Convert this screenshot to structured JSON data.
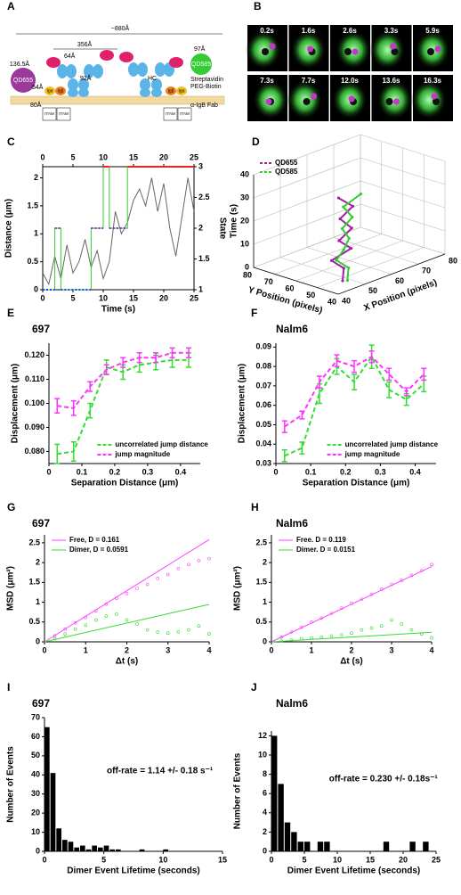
{
  "diagram": {
    "panel": "A",
    "labels": [
      "~880Å",
      "356Å",
      "64Å",
      "136.5Å",
      "QD655",
      "54Å",
      "80Å",
      "92Å",
      "HC",
      "97Å",
      "QD585",
      "Streptavidin",
      "PEG-Biotin",
      "α-IgB Fab",
      "ITAM",
      "Igα",
      "Igβ"
    ]
  },
  "image_grid": {
    "panel": "B",
    "frames": [
      "0.2s",
      "1.6s",
      "2.6s",
      "3.3s",
      "5.9s",
      "7.3s",
      "7.7s",
      "12.0s",
      "13.6s",
      "16.3s"
    ]
  },
  "chart_data": [
    {
      "panel": "C",
      "type": "line",
      "xlabel": "Time (s)",
      "ylabel": "Distance (μm)",
      "y2label": "State",
      "xlim": [
        0,
        25
      ],
      "xticks": [
        0,
        5,
        10,
        15,
        20,
        25
      ],
      "ylim": [
        0,
        2.2
      ],
      "yticks": [
        0,
        0.5,
        1,
        1.5,
        2
      ],
      "y2lim": [
        1,
        3
      ],
      "y2ticks": [
        1,
        1.5,
        2,
        2.5,
        3
      ],
      "series": [
        {
          "color": "#666666",
          "x": [
            0,
            1,
            2,
            3,
            4,
            5,
            6,
            7,
            8,
            9,
            10,
            11,
            12,
            13,
            14,
            15,
            16,
            17,
            18,
            19,
            20,
            21,
            22,
            23,
            24,
            25
          ],
          "values": [
            0.3,
            0.1,
            0.6,
            0.2,
            0.8,
            0.3,
            0.5,
            0.9,
            0.4,
            0.7,
            0.2,
            0.5,
            1.4,
            1.0,
            1.2,
            1.6,
            1.8,
            1.5,
            2.0,
            1.4,
            1.9,
            1.1,
            0.6,
            1.3,
            2.0,
            1.4
          ]
        },
        {
          "color": "#33cc33",
          "axis": "y2",
          "x": [
            0,
            2,
            2,
            3,
            3,
            8,
            8,
            10,
            10,
            11,
            11,
            14,
            14,
            25
          ],
          "values": [
            1,
            1,
            2,
            2,
            1,
            1,
            2,
            2,
            3,
            3,
            2,
            2,
            3,
            3
          ]
        },
        {
          "color": "#aa22cc",
          "axis": "y2",
          "dash": true,
          "x": [
            2,
            3,
            6,
            8,
            10,
            11,
            11,
            14
          ],
          "values": [
            2,
            2,
            null,
            2,
            2,
            null,
            2,
            2
          ]
        },
        {
          "color": "#2244ee",
          "axis": "y2",
          "dash": true,
          "x": [
            0,
            2,
            3,
            3,
            8
          ],
          "values": [
            1,
            1,
            null,
            1,
            1
          ]
        },
        {
          "color": "#ee2222",
          "axis": "y2",
          "x": [
            10,
            11,
            12,
            14,
            25
          ],
          "values": [
            3,
            3,
            null,
            3,
            3
          ]
        }
      ]
    },
    {
      "panel": "D",
      "type": "scatter3d",
      "xlabel": "X Position (pixels)",
      "ylabel": "Y Position (pixels)",
      "zlabel": "Time (s)",
      "xlim": [
        40,
        80
      ],
      "xticks": [
        40,
        50,
        60,
        70,
        80
      ],
      "ylim": [
        40,
        80
      ],
      "yticks": [
        40,
        50,
        60,
        70,
        80
      ],
      "zlim": [
        0,
        40
      ],
      "zticks": [
        0,
        10,
        20,
        30,
        40
      ],
      "legend": "upper left",
      "series": [
        {
          "name": "QD655",
          "color": "#a020a0",
          "x": [
            48,
            50,
            47,
            52,
            49,
            53,
            51,
            55,
            52
          ],
          "y": [
            48,
            50,
            52,
            49,
            51,
            50,
            53,
            52,
            55
          ],
          "values": [
            0,
            4,
            8,
            12,
            16,
            20,
            24,
            28,
            32
          ]
        },
        {
          "name": "QD585",
          "color": "#33cc33",
          "x": [
            49,
            51,
            48,
            50,
            52,
            51,
            54,
            53,
            58
          ],
          "y": [
            47,
            49,
            51,
            50,
            50,
            52,
            51,
            54,
            52
          ],
          "values": [
            0,
            4,
            8,
            12,
            16,
            20,
            24,
            28,
            32
          ]
        }
      ]
    },
    {
      "panel": "E",
      "title": "697",
      "type": "line",
      "xlabel": "Separation Distance (μm)",
      "ylabel": "Displacement (μm)",
      "xlim": [
        0,
        0.46
      ],
      "xticks": [
        0,
        0.1,
        0.2,
        0.3,
        0.4
      ],
      "ylim": [
        0.075,
        0.125
      ],
      "yticks": [
        {
          "value": 0.08,
          "label": "0.080"
        },
        {
          "value": 0.09,
          "label": "0.090"
        },
        {
          "value": 0.1,
          "label": "0.100"
        },
        {
          "value": 0.11,
          "label": "0.110"
        },
        {
          "value": 0.12,
          "label": "0.120"
        }
      ],
      "legend": "lower right",
      "x": [
        0.025,
        0.075,
        0.125,
        0.175,
        0.225,
        0.275,
        0.325,
        0.375,
        0.425
      ],
      "series": [
        {
          "name": "uncorrelated jump distance",
          "color": "#33dd33",
          "dash": true,
          "values": [
            0.079,
            0.08,
            0.097,
            0.115,
            0.113,
            0.116,
            0.117,
            0.118,
            0.118
          ],
          "errors": [
            0.004,
            0.004,
            0.003,
            0.003,
            0.003,
            0.003,
            0.003,
            0.003,
            0.003
          ]
        },
        {
          "name": "jump magnitude",
          "color": "#ff33ff",
          "dash": true,
          "values": [
            0.099,
            0.098,
            0.107,
            0.114,
            0.117,
            0.119,
            0.119,
            0.121,
            0.121
          ],
          "errors": [
            0.003,
            0.003,
            0.002,
            0.002,
            0.002,
            0.002,
            0.002,
            0.002,
            0.002
          ]
        }
      ]
    },
    {
      "panel": "F",
      "title": "Nalm6",
      "type": "line",
      "xlabel": "Separation Distance (μm)",
      "ylabel": "Displacement (μm)",
      "xlim": [
        0,
        0.46
      ],
      "xticks": [
        0,
        0.1,
        0.2,
        0.3,
        0.4
      ],
      "ylim": [
        0.03,
        0.092
      ],
      "yticks": [
        0.03,
        0.04,
        0.05,
        0.06,
        0.07,
        0.08,
        0.09
      ],
      "legend": "lower right",
      "x": [
        0.025,
        0.075,
        0.125,
        0.175,
        0.225,
        0.275,
        0.325,
        0.375,
        0.425
      ],
      "series": [
        {
          "name": "uncorrelated jump distance",
          "color": "#33dd33",
          "dash": true,
          "values": [
            0.034,
            0.038,
            0.066,
            0.08,
            0.072,
            0.085,
            0.068,
            0.063,
            0.071
          ],
          "errors": [
            0.003,
            0.003,
            0.005,
            0.004,
            0.004,
            0.006,
            0.004,
            0.003,
            0.004
          ]
        },
        {
          "name": "jump magnitude",
          "color": "#ff33ff",
          "dash": true,
          "values": [
            0.049,
            0.055,
            0.072,
            0.083,
            0.08,
            0.085,
            0.076,
            0.067,
            0.076
          ],
          "errors": [
            0.003,
            0.002,
            0.003,
            0.003,
            0.003,
            0.003,
            0.003,
            0.002,
            0.003
          ]
        }
      ]
    },
    {
      "panel": "G",
      "title": "697",
      "type": "scatter",
      "xlabel": "Δt (s)",
      "ylabel": "MSD (μm²)",
      "xlim": [
        0,
        4
      ],
      "xticks": [
        0,
        1,
        2,
        3,
        4
      ],
      "ylim": [
        0,
        2.7
      ],
      "yticks": [
        0,
        0.5,
        1,
        1.5,
        2,
        2.5
      ],
      "legend": "upper left",
      "series": [
        {
          "name": "Free, D = 0.161",
          "color": "#ff44ff",
          "style": "line",
          "x": [
            0,
            4
          ],
          "values": [
            0,
            2.58
          ]
        },
        {
          "name": "Dimer, D = 0.0591",
          "color": "#33dd33",
          "style": "line",
          "x": [
            0,
            4
          ],
          "values": [
            0,
            0.946
          ]
        },
        {
          "color": "#ff44ff",
          "x": [
            0.25,
            0.5,
            0.75,
            1,
            1.25,
            1.5,
            1.75,
            2,
            2.25,
            2.5,
            2.75,
            3,
            3.25,
            3.5,
            3.75,
            4
          ],
          "values": [
            0.15,
            0.32,
            0.48,
            0.62,
            0.78,
            0.95,
            1.1,
            1.22,
            1.35,
            1.45,
            1.6,
            1.7,
            1.85,
            1.95,
            2.05,
            2.1
          ]
        },
        {
          "color": "#33dd33",
          "x": [
            0.25,
            0.5,
            0.75,
            1,
            1.25,
            1.5,
            1.75,
            2,
            2.25,
            2.5,
            2.75,
            3,
            3.25,
            3.5,
            3.75,
            4
          ],
          "values": [
            0.08,
            0.2,
            0.32,
            0.42,
            0.55,
            0.65,
            0.7,
            0.55,
            0.45,
            0.3,
            0.25,
            0.22,
            0.25,
            0.3,
            0.4,
            0.2
          ]
        }
      ]
    },
    {
      "panel": "H",
      "title": "Nalm6",
      "type": "scatter",
      "xlabel": "Δt (s)",
      "ylabel": "MSD (μm²)",
      "xlim": [
        0,
        4
      ],
      "xticks": [
        0,
        1,
        2,
        3,
        4
      ],
      "ylim": [
        0,
        2.7
      ],
      "yticks": [
        0,
        0.5,
        1,
        1.5,
        2,
        2.5
      ],
      "legend": "upper left",
      "series": [
        {
          "name": "Free. D = 0.119",
          "color": "#ff44ff",
          "style": "line",
          "x": [
            0,
            4
          ],
          "values": [
            0,
            1.9
          ]
        },
        {
          "name": "Dimer. D = 0.0151",
          "color": "#33dd33",
          "style": "line",
          "x": [
            0,
            4
          ],
          "values": [
            0,
            0.24
          ]
        },
        {
          "color": "#ff44ff",
          "x": [
            0.25,
            0.5,
            0.75,
            1,
            1.25,
            1.5,
            1.75,
            2,
            2.25,
            2.5,
            2.75,
            3,
            3.25,
            3.5,
            3.75,
            4
          ],
          "values": [
            0.12,
            0.25,
            0.37,
            0.5,
            0.6,
            0.72,
            0.85,
            0.97,
            1.08,
            1.2,
            1.33,
            1.45,
            1.55,
            1.68,
            1.8,
            1.95
          ]
        },
        {
          "color": "#33dd33",
          "x": [
            0.25,
            0.5,
            0.75,
            1,
            1.25,
            1.5,
            1.75,
            2,
            2.25,
            2.5,
            2.75,
            3,
            3.25,
            3.5,
            3.75,
            4
          ],
          "values": [
            0.02,
            0.05,
            0.08,
            0.1,
            0.12,
            0.15,
            0.18,
            0.22,
            0.3,
            0.35,
            0.4,
            0.55,
            0.45,
            0.3,
            0.2,
            0.1
          ]
        }
      ]
    },
    {
      "panel": "I",
      "title": "697",
      "type": "histogram",
      "xlabel": "Dimer Event Lifetime (seconds)",
      "ylabel": "Number of Events",
      "annotation": "off-rate = 1.14 +/- 0.18 s⁻¹",
      "color": "#000000",
      "xlim": [
        0,
        15
      ],
      "xticks": [
        0,
        5,
        10,
        15
      ],
      "ylim": [
        0,
        70
      ],
      "yticks": [
        0,
        10,
        20,
        30,
        40,
        50,
        60,
        70
      ],
      "bins": [
        0,
        0.5,
        1,
        1.5,
        2,
        2.5,
        3,
        3.5,
        4,
        4.5,
        5,
        5.5,
        6,
        6.5,
        7,
        7.5,
        8,
        8.5,
        9,
        9.5,
        10,
        10.5,
        11
      ],
      "values": [
        65,
        41,
        12,
        6,
        5,
        2,
        3,
        1,
        3,
        2,
        3,
        1,
        1,
        0,
        0,
        0,
        1,
        0,
        0,
        0,
        1,
        0
      ]
    },
    {
      "panel": "J",
      "title": "Nalm6",
      "type": "histogram",
      "xlabel": "Dimer Event Lifetime (seconds)",
      "ylabel": "Number of Events",
      "annotation": "off-rate = 0.230 +/- 0.18s⁻¹",
      "color": "#000000",
      "xlim": [
        0,
        25
      ],
      "xticks": [
        0,
        5,
        10,
        15,
        20,
        25
      ],
      "ylim": [
        0,
        12.5
      ],
      "yticks": [
        0,
        2,
        4,
        6,
        8,
        10,
        12
      ],
      "bins": [
        0,
        1,
        2,
        3,
        4,
        5,
        6,
        7,
        8,
        9,
        10,
        11,
        12,
        13,
        14,
        15,
        16,
        17,
        18,
        19,
        20,
        21,
        22,
        23,
        24
      ],
      "values": [
        12,
        7,
        3,
        2,
        1,
        1,
        0,
        1,
        1,
        0,
        0,
        0,
        0,
        0,
        0,
        0,
        0,
        1,
        0,
        0,
        0,
        1,
        0,
        1
      ]
    }
  ]
}
